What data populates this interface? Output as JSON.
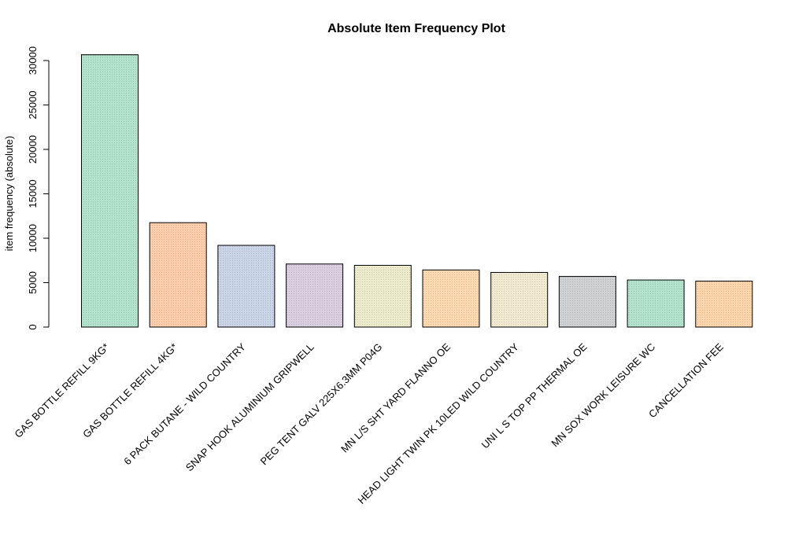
{
  "chart_data": {
    "type": "bar",
    "title": "Absolute Item Frequency Plot",
    "xlabel": "",
    "ylabel": "item frequency (absolute)",
    "ylim": [
      0,
      30000
    ],
    "yticks": [
      0,
      5000,
      10000,
      15000,
      20000,
      25000,
      30000
    ],
    "grid": false,
    "categories": [
      "GAS BOTTLE REFILL 9KG*",
      "GAS BOTTLE REFILL 4KG*",
      "6 PACK BUTANE - WILD COUNTRY",
      "SNAP HOOK ALUMINIUM GRIPWELL",
      "PEG TENT GALV 225X6.3MM P04G",
      "MN L/S SHT YARD FLANNO OE",
      "HEAD LIGHT TWIN PK 10LED WILD COUNTRY",
      "UNI L S TOP PP THERMAL OE",
      "MN SOX WORK LEISURE WC",
      "CANCELLATION FEE"
    ],
    "values": [
      30650,
      11750,
      9200,
      7100,
      6950,
      6430,
      6150,
      5700,
      5300,
      5170
    ],
    "colors": [
      "#b3e2cd",
      "#fdcdac",
      "#cbd5e8",
      "#d9cfe0",
      "#ecebcc",
      "#fdd8b0",
      "#f1ead0",
      "#cfd1d3",
      "#b3e2cd",
      "#fdd5ab"
    ]
  }
}
